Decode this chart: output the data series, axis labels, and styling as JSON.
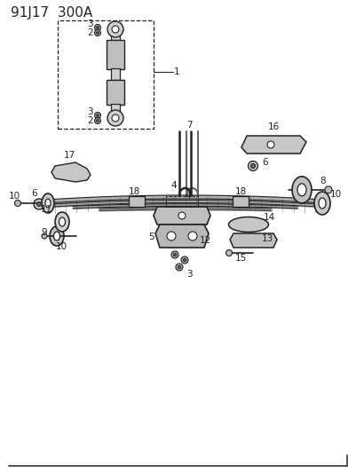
{
  "title": "91J17  300A",
  "bg_color": "#ffffff",
  "line_color": "#222222",
  "title_fontsize": 11,
  "label_fontsize": 7.5,
  "fig_width": 4.01,
  "fig_height": 5.33,
  "dpi": 100
}
